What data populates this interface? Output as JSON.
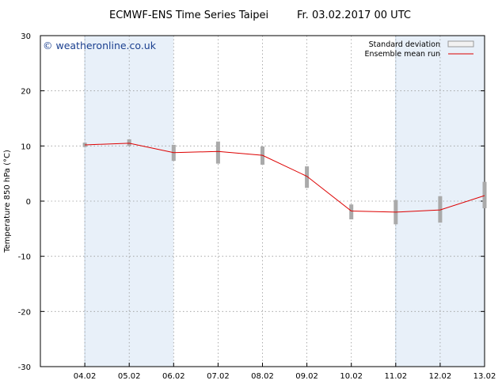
{
  "header": {
    "title": "ECMWF-ENS Time Series Taipei",
    "run": "Fr. 03.02.2017 00 UTC"
  },
  "watermark": "© weatheronline.co.uk",
  "chart_data": {
    "type": "line",
    "title": "ECMWF-ENS Time Series Taipei",
    "ylabel": "Temperature 850 hPa (°C)",
    "xlabel": "",
    "x_ticks": [
      "04.02",
      "05.02",
      "06.02",
      "07.02",
      "08.02",
      "09.02",
      "10.02",
      "11.02",
      "12.02",
      "13.02"
    ],
    "xlim": [
      "03.02",
      "13.02"
    ],
    "ylim": [
      -30,
      30
    ],
    "y_ticks": [
      -30,
      -20,
      -10,
      0,
      10,
      20,
      30
    ],
    "grid": true,
    "legend": {
      "placement": "top-right",
      "entries": [
        {
          "label": "Standard deviation",
          "kind": "box",
          "color": "#aaaaaa"
        },
        {
          "label": "Ensemble mean run",
          "kind": "line",
          "color": "#dd0000"
        }
      ]
    },
    "shaded_periods": [
      {
        "from": "04.02",
        "to": "06.02"
      },
      {
        "from": "11.02",
        "to": "13.02"
      }
    ],
    "series": [
      {
        "name": "Ensemble mean run",
        "color": "#dd0000",
        "points": [
          {
            "x": "04.02",
            "y": 10.2,
            "sd_low": 9.8,
            "sd_high": 10.6
          },
          {
            "x": "05.02",
            "y": 10.5,
            "sd_low": 10.0,
            "sd_high": 11.2
          },
          {
            "x": "06.02",
            "y": 8.8,
            "sd_low": 7.3,
            "sd_high": 10.2
          },
          {
            "x": "07.02",
            "y": 9.0,
            "sd_low": 6.8,
            "sd_high": 10.8
          },
          {
            "x": "08.02",
            "y": 8.3,
            "sd_low": 6.6,
            "sd_high": 9.9
          },
          {
            "x": "09.02",
            "y": 4.5,
            "sd_low": 2.4,
            "sd_high": 6.3
          },
          {
            "x": "10.02",
            "y": -1.8,
            "sd_low": -3.3,
            "sd_high": -0.6
          },
          {
            "x": "11.02",
            "y": -2.0,
            "sd_low": -4.2,
            "sd_high": 0.2
          },
          {
            "x": "12.02",
            "y": -1.6,
            "sd_low": -3.9,
            "sd_high": 0.9
          },
          {
            "x": "13.02",
            "y": 1.0,
            "sd_low": -1.3,
            "sd_high": 3.5
          }
        ]
      }
    ]
  }
}
